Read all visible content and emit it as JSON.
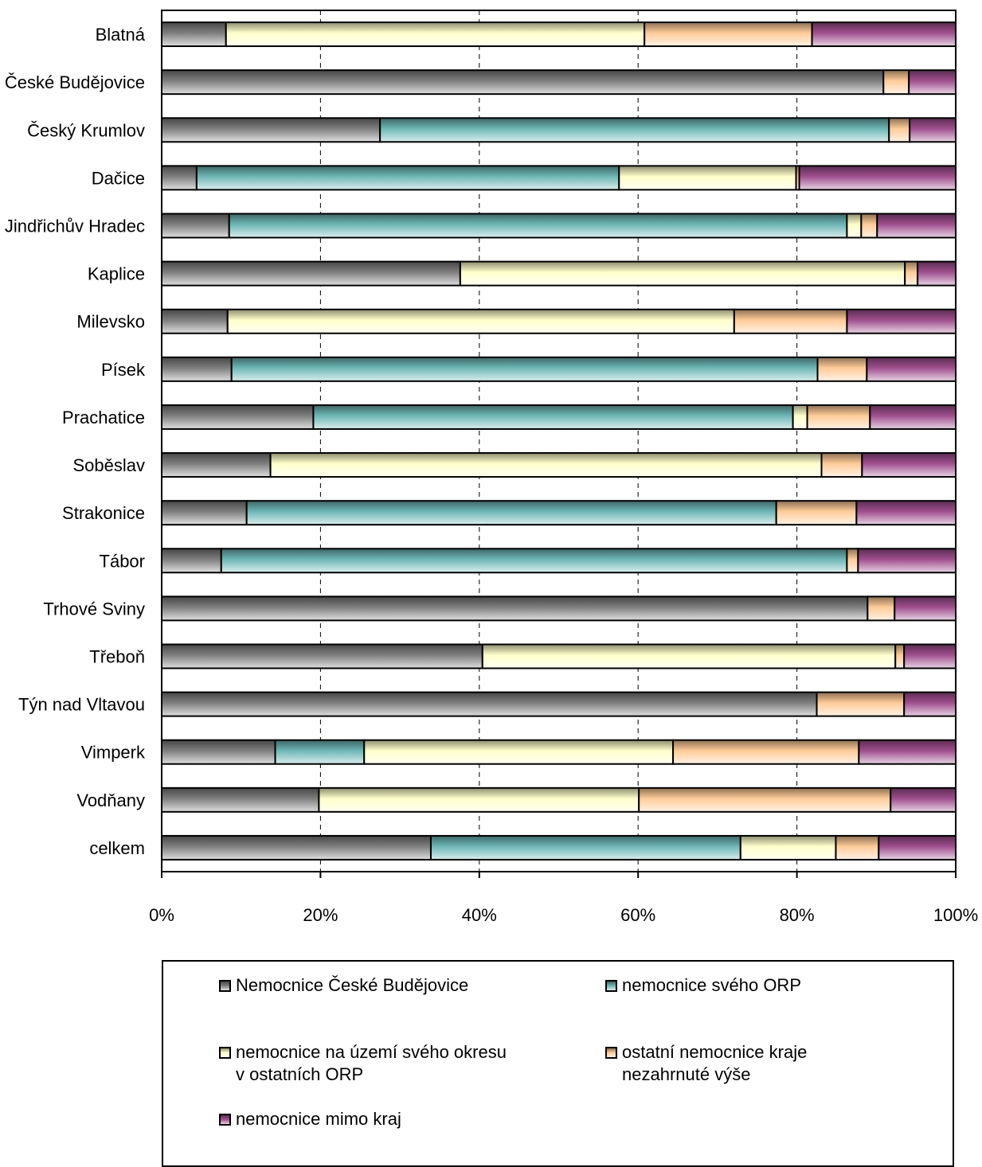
{
  "chart_data": {
    "type": "bar",
    "orientation": "horizontal",
    "stacked": "percent",
    "categories": [
      "Blatná",
      "České Budějovice",
      "Český Krumlov",
      "Dačice",
      "Jindřichův Hradec",
      "Kaplice",
      "Milevsko",
      "Písek",
      "Prachatice",
      "Soběslav",
      "Strakonice",
      "Tábor",
      "Trhové Sviny",
      "Třeboň",
      "Týn nad Vltavou",
      "Vimperk",
      "Vodňany",
      "celkem"
    ],
    "series": [
      {
        "key": "cb",
        "name": "Nemocnice České Budějovice",
        "color": "#7f7f7f",
        "values": [
          8.1,
          90.9,
          27.5,
          4.4,
          8.5,
          37.6,
          8.3,
          8.8,
          19.1,
          13.7,
          10.7,
          7.5,
          88.9,
          40.4,
          82.5,
          14.3,
          19.8,
          33.9
        ]
      },
      {
        "key": "orp",
        "name": "nemocnice svého ORP",
        "color": "#6fb7b7",
        "values": [
          0,
          0,
          64.1,
          53.2,
          77.8,
          0,
          0,
          73.8,
          60.4,
          0,
          66.7,
          78.8,
          0,
          0,
          0,
          11.2,
          0,
          39.0
        ]
      },
      {
        "key": "okres",
        "name": "nemocnice na území svého okresu\nv ostatních ORP",
        "color": "#ffffcc",
        "values": [
          52.7,
          0,
          0,
          22.3,
          1.8,
          56.0,
          63.8,
          0,
          1.8,
          69.4,
          0,
          0,
          0,
          52.0,
          0,
          38.9,
          40.3,
          12.0
        ]
      },
      {
        "key": "kraj",
        "name": "ostatní nemocnice kraje\nnezahrnuté výše",
        "color": "#ffcc99",
        "values": [
          21.1,
          3.2,
          2.6,
          0.4,
          2.0,
          1.6,
          14.2,
          6.2,
          7.9,
          5.1,
          10.1,
          1.4,
          3.4,
          1.1,
          11.0,
          23.4,
          31.7,
          5.4
        ]
      },
      {
        "key": "mimo",
        "name": "nemocnice mimo kraj",
        "color": "#a0508f",
        "values": [
          18.1,
          5.9,
          5.8,
          19.7,
          9.9,
          4.8,
          13.7,
          11.2,
          10.8,
          11.8,
          12.5,
          12.3,
          7.7,
          6.5,
          6.5,
          12.2,
          8.2,
          9.7
        ]
      }
    ],
    "x_ticks": [
      "0%",
      "20%",
      "40%",
      "60%",
      "80%",
      "100%"
    ],
    "xlim": [
      0,
      100
    ],
    "grid": "vertical dashed at 20%, 40%, 60%, 80%",
    "legend_position": "bottom"
  }
}
